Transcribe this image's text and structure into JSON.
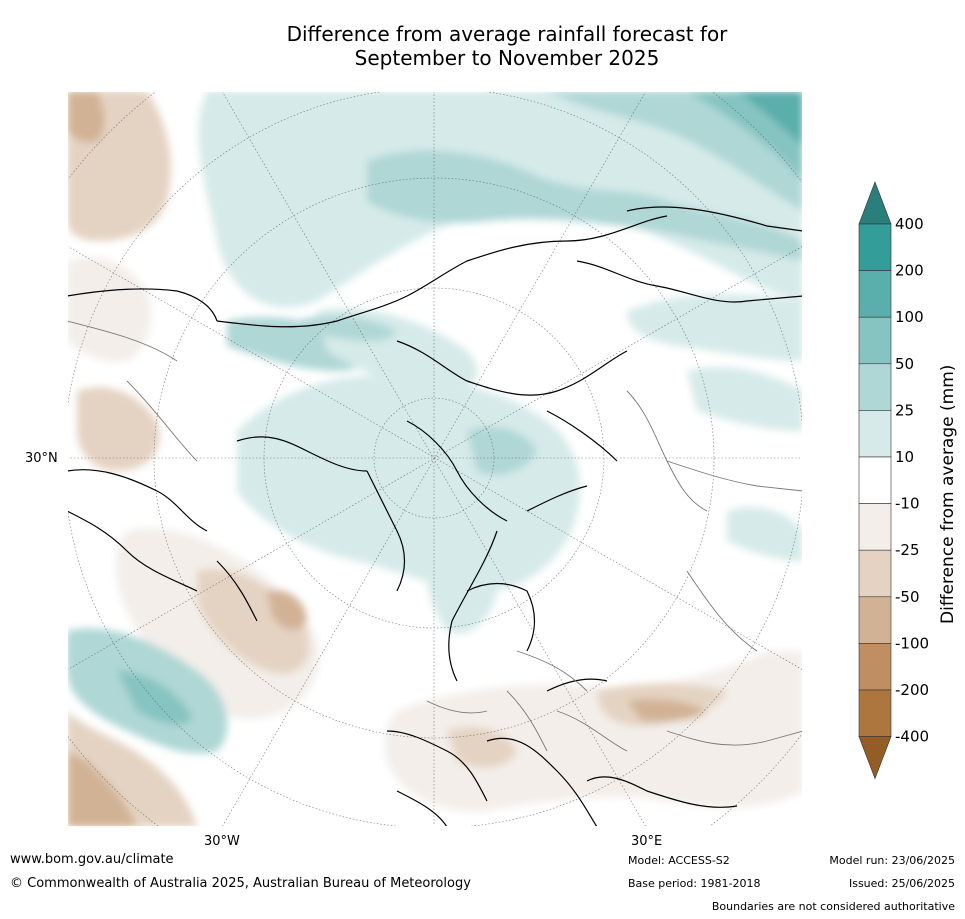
{
  "title_line1": "Difference from average rainfall forecast for",
  "title_line2": "September to November 2025",
  "map": {
    "lat_label": "30°N",
    "lon_labels": [
      "30°W",
      "30°E"
    ]
  },
  "colorbar": {
    "label": "Difference from average (mm)",
    "ticks": [
      "400",
      "200",
      "100",
      "50",
      "25",
      "10",
      "-10",
      "-25",
      "-50",
      "-100",
      "-200",
      "-400"
    ],
    "colors": [
      "#2a7f7c",
      "#339d99",
      "#5aaeab",
      "#86c4c1",
      "#afd7d6",
      "#d5eae9",
      "#ffffff",
      "#f3eee9",
      "#e4d3c2",
      "#d2b295",
      "#bf8e63",
      "#ad763f",
      "#935d25"
    ]
  },
  "footer": {
    "website": "www.bom.gov.au/climate",
    "copyright": "© Commonwealth of Australia 2025, Australian Bureau of Meteorology",
    "model": "Model: ACCESS-S2",
    "base_period": "Base period: 1981-2018",
    "model_run": "Model run: 23/06/2025",
    "issued": "Issued: 25/06/2025",
    "disclaimer": "Boundaries are not considered authoritative"
  }
}
